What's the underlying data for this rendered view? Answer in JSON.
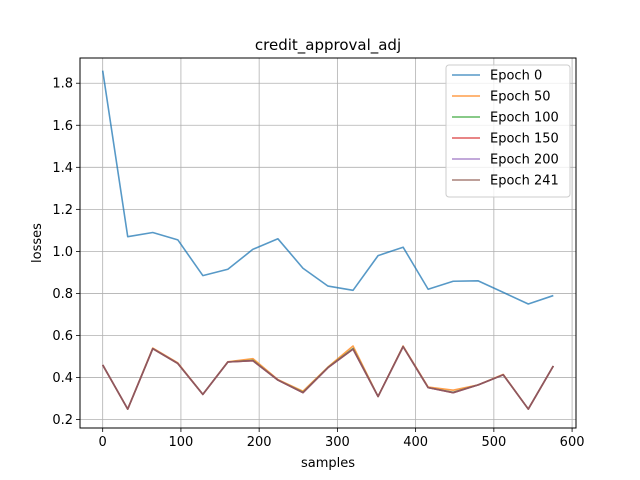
{
  "chart_data": {
    "type": "line",
    "title": "credit_approval_adj",
    "xlabel": "samples",
    "ylabel": "losses",
    "xlim": [
      -29,
      605
    ],
    "ylim": [
      0.16,
      1.92
    ],
    "xticks": [
      0,
      100,
      200,
      300,
      400,
      500,
      600
    ],
    "yticks": [
      0.2,
      0.4,
      0.6,
      0.8,
      1.0,
      1.2,
      1.4,
      1.6,
      1.8
    ],
    "xtick_labels": [
      "0",
      "100",
      "200",
      "300",
      "400",
      "500",
      "600"
    ],
    "ytick_labels": [
      "0.2",
      "0.4",
      "0.6",
      "0.8",
      "1.0",
      "1.2",
      "1.4",
      "1.6",
      "1.8"
    ],
    "grid": true,
    "legend_position": "top-right",
    "x": [
      0,
      32,
      64,
      96,
      128,
      160,
      192,
      224,
      256,
      288,
      320,
      352,
      384,
      416,
      448,
      480,
      512,
      544,
      576
    ],
    "series": [
      {
        "name": "Epoch 0",
        "color": "#1f77b4",
        "values": [
          1.86,
          1.07,
          1.09,
          1.055,
          0.885,
          0.915,
          1.01,
          1.06,
          0.92,
          0.835,
          0.815,
          0.98,
          1.02,
          0.82,
          0.858,
          0.86,
          0.805,
          0.75,
          0.79
        ]
      },
      {
        "name": "Epoch 50",
        "color": "#ff7f0e",
        "values": [
          0.46,
          0.25,
          0.54,
          0.47,
          0.32,
          0.475,
          0.49,
          0.39,
          0.335,
          0.45,
          0.55,
          0.31,
          0.55,
          0.355,
          0.34,
          0.365,
          0.415,
          0.25,
          0.455
        ]
      },
      {
        "name": "Epoch 100",
        "color": "#2ca02c",
        "values": [
          0.46,
          0.25,
          0.537,
          0.467,
          0.32,
          0.474,
          0.482,
          0.388,
          0.33,
          0.448,
          0.538,
          0.31,
          0.547,
          0.352,
          0.33,
          0.365,
          0.413,
          0.25,
          0.455
        ]
      },
      {
        "name": "Epoch 150",
        "color": "#d62728",
        "values": [
          0.46,
          0.25,
          0.537,
          0.467,
          0.32,
          0.474,
          0.48,
          0.388,
          0.328,
          0.447,
          0.535,
          0.31,
          0.547,
          0.352,
          0.328,
          0.365,
          0.413,
          0.25,
          0.455
        ]
      },
      {
        "name": "Epoch 200",
        "color": "#9467bd",
        "values": [
          0.46,
          0.25,
          0.537,
          0.467,
          0.32,
          0.474,
          0.48,
          0.388,
          0.328,
          0.447,
          0.535,
          0.31,
          0.547,
          0.352,
          0.328,
          0.365,
          0.413,
          0.25,
          0.455
        ]
      },
      {
        "name": "Epoch 241",
        "color": "#8c564b",
        "values": [
          0.46,
          0.25,
          0.537,
          0.467,
          0.32,
          0.474,
          0.48,
          0.388,
          0.328,
          0.447,
          0.535,
          0.31,
          0.547,
          0.352,
          0.328,
          0.365,
          0.413,
          0.25,
          0.455
        ]
      }
    ]
  }
}
